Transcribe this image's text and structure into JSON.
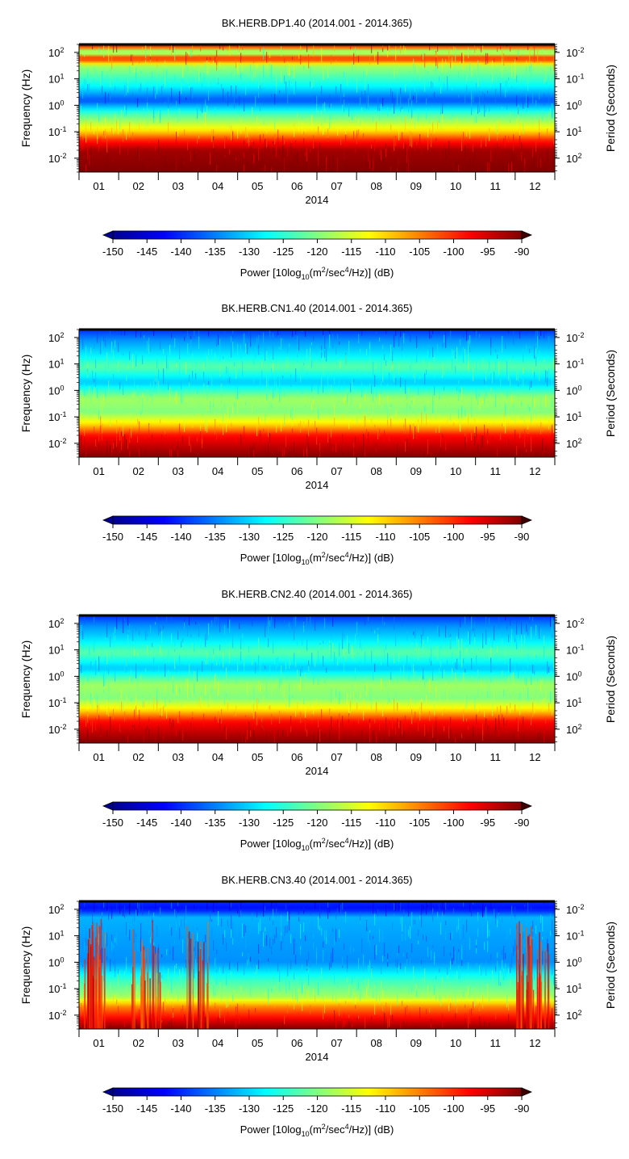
{
  "colorbar": {
    "label": "Power [10log10(m2/sec4/Hz)] (dB)",
    "label_parts": {
      "pre": "Power [10log",
      "sub": "10",
      "mid": "(m",
      "sup1": "2",
      "mid2": "/sec",
      "sup2": "4",
      "post": "/Hz)] (dB)"
    },
    "ticks": [
      "-150",
      "-145",
      "-140",
      "-135",
      "-130",
      "-125",
      "-120",
      "-115",
      "-110",
      "-105",
      "-100",
      "-95",
      "-90"
    ],
    "range": [
      -150,
      -90
    ],
    "colors": [
      "#00008f",
      "#0000ff",
      "#0080ff",
      "#00ffff",
      "#80ff80",
      "#ffff00",
      "#ff8000",
      "#ff0000",
      "#800000"
    ]
  },
  "axes": {
    "ylabel_left": "Frequency (Hz)",
    "ylabel_right": "Period (Seconds)",
    "xlabel": "2014",
    "freq_ticks": [
      {
        "base": "10",
        "exp": "2"
      },
      {
        "base": "10",
        "exp": "1"
      },
      {
        "base": "10",
        "exp": "0"
      },
      {
        "base": "10",
        "exp": "-1"
      },
      {
        "base": "10",
        "exp": "-2"
      }
    ],
    "period_ticks": [
      {
        "base": "10",
        "exp": "-2"
      },
      {
        "base": "10",
        "exp": "-1"
      },
      {
        "base": "10",
        "exp": "0"
      },
      {
        "base": "10",
        "exp": "1"
      },
      {
        "base": "10",
        "exp": "2"
      }
    ],
    "month_labels": [
      "01",
      "02",
      "03",
      "04",
      "05",
      "06",
      "07",
      "08",
      "09",
      "10",
      "11",
      "12"
    ]
  },
  "chart_data": [
    {
      "type": "heatmap",
      "title": "BK.HERB.DP1.40 (2014.001 - 2014.365)",
      "xlabel": "2014",
      "ylabel": "Frequency (Hz)",
      "ylabel_right": "Period (Seconds)",
      "x_range": [
        "2014-01-01",
        "2014-12-31"
      ],
      "y_range_hz": [
        0.003,
        200
      ],
      "y_scale": "log",
      "value_range_db": [
        -150,
        -90
      ],
      "band_profile": [
        {
          "freq_hz": 200,
          "power_db": -90
        },
        {
          "freq_hz": 100,
          "power_db": -125
        },
        {
          "freq_hz": 60,
          "power_db": -97
        },
        {
          "freq_hz": 30,
          "power_db": -118
        },
        {
          "freq_hz": 5,
          "power_db": -128
        },
        {
          "freq_hz": 1.5,
          "power_db": -138
        },
        {
          "freq_hz": 0.5,
          "power_db": -124
        },
        {
          "freq_hz": 0.1,
          "power_db": -110
        },
        {
          "freq_hz": 0.05,
          "power_db": -100
        },
        {
          "freq_hz": 0.02,
          "power_db": -92
        },
        {
          "freq_hz": 0.003,
          "power_db": -90
        }
      ]
    },
    {
      "type": "heatmap",
      "title": "BK.HERB.CN1.40 (2014.001 - 2014.365)",
      "xlabel": "2014",
      "ylabel": "Frequency (Hz)",
      "ylabel_right": "Period (Seconds)",
      "x_range": [
        "2014-01-01",
        "2014-12-31"
      ],
      "y_range_hz": [
        0.003,
        200
      ],
      "y_scale": "log",
      "value_range_db": [
        -150,
        -90
      ],
      "band_profile": [
        {
          "freq_hz": 200,
          "power_db": -140
        },
        {
          "freq_hz": 80,
          "power_db": -134
        },
        {
          "freq_hz": 20,
          "power_db": -128
        },
        {
          "freq_hz": 8,
          "power_db": -122
        },
        {
          "freq_hz": 2,
          "power_db": -131
        },
        {
          "freq_hz": 0.5,
          "power_db": -118
        },
        {
          "freq_hz": 0.15,
          "power_db": -120
        },
        {
          "freq_hz": 0.05,
          "power_db": -110
        },
        {
          "freq_hz": 0.02,
          "power_db": -98
        },
        {
          "freq_hz": 0.003,
          "power_db": -90
        }
      ]
    },
    {
      "type": "heatmap",
      "title": "BK.HERB.CN2.40 (2014.001 - 2014.365)",
      "xlabel": "2014",
      "ylabel": "Frequency (Hz)",
      "ylabel_right": "Period (Seconds)",
      "x_range": [
        "2014-01-01",
        "2014-12-31"
      ],
      "y_range_hz": [
        0.003,
        200
      ],
      "y_scale": "log",
      "value_range_db": [
        -150,
        -90
      ],
      "band_profile": [
        {
          "freq_hz": 200,
          "power_db": -140
        },
        {
          "freq_hz": 80,
          "power_db": -134
        },
        {
          "freq_hz": 20,
          "power_db": -128
        },
        {
          "freq_hz": 8,
          "power_db": -122
        },
        {
          "freq_hz": 2,
          "power_db": -131
        },
        {
          "freq_hz": 0.5,
          "power_db": -118
        },
        {
          "freq_hz": 0.15,
          "power_db": -120
        },
        {
          "freq_hz": 0.05,
          "power_db": -110
        },
        {
          "freq_hz": 0.02,
          "power_db": -98
        },
        {
          "freq_hz": 0.003,
          "power_db": -90
        }
      ]
    },
    {
      "type": "heatmap",
      "title": "BK.HERB.CN3.40 (2014.001 - 2014.365)",
      "xlabel": "2014",
      "ylabel": "Frequency (Hz)",
      "ylabel_right": "Period (Seconds)",
      "x_range": [
        "2014-01-01",
        "2014-12-31"
      ],
      "y_range_hz": [
        0.003,
        200
      ],
      "y_scale": "log",
      "value_range_db": [
        -150,
        -90
      ],
      "band_profile": [
        {
          "freq_hz": 200,
          "power_db": -140
        },
        {
          "freq_hz": 100,
          "power_db": -142
        },
        {
          "freq_hz": 50,
          "power_db": -132
        },
        {
          "freq_hz": 10,
          "power_db": -133
        },
        {
          "freq_hz": 1,
          "power_db": -134
        },
        {
          "freq_hz": 0.2,
          "power_db": -124
        },
        {
          "freq_hz": 0.05,
          "power_db": -118
        },
        {
          "freq_hz": 0.02,
          "power_db": -105
        },
        {
          "freq_hz": 0.003,
          "power_db": -90
        }
      ]
    }
  ]
}
